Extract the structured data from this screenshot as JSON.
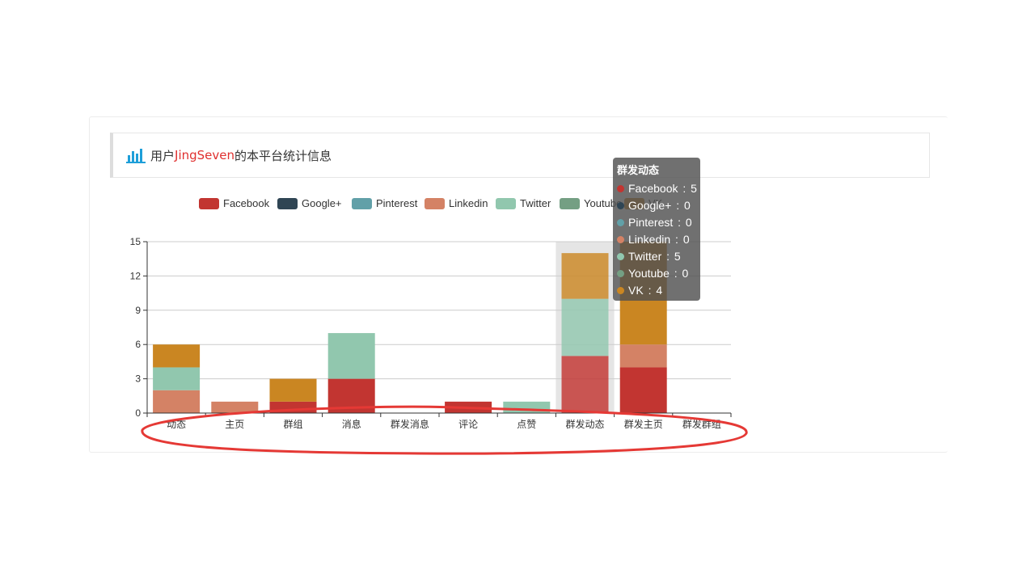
{
  "header": {
    "prefix": "用户",
    "username": "JingSeven",
    "suffix": "的本平台统计信息",
    "icon": "bar-chart-icon",
    "icon_color": "#1e9fd9",
    "username_color": "#e0302f"
  },
  "chart_data": {
    "type": "bar",
    "stacked": true,
    "categories": [
      "动态",
      "主页",
      "群组",
      "消息",
      "群发消息",
      "评论",
      "点赞",
      "群发动态",
      "群发主页",
      "群发群组"
    ],
    "series": [
      {
        "name": "Facebook",
        "color": "#c23531",
        "values": [
          0,
          0,
          1,
          3,
          0,
          1,
          0,
          5,
          4,
          0
        ]
      },
      {
        "name": "Google+",
        "color": "#2f4554",
        "values": [
          0,
          0,
          0,
          0,
          0,
          0,
          0,
          0,
          0,
          0
        ]
      },
      {
        "name": "Pinterest",
        "color": "#61a0a8",
        "values": [
          0,
          0,
          0,
          0,
          0,
          0,
          0,
          0,
          0,
          0
        ]
      },
      {
        "name": "Linkedin",
        "color": "#d48265",
        "values": [
          2,
          1,
          0,
          0,
          0,
          0,
          0,
          0,
          2,
          0
        ]
      },
      {
        "name": "Twitter",
        "color": "#91c7ae",
        "values": [
          2,
          0,
          0,
          4,
          0,
          0,
          1,
          5,
          0,
          0
        ]
      },
      {
        "name": "Youtube",
        "color": "#749f83",
        "values": [
          0,
          0,
          0,
          0,
          0,
          0,
          0,
          0,
          0,
          0
        ]
      },
      {
        "name": "VK",
        "color": "#ca8622",
        "values": [
          2,
          0,
          2,
          0,
          0,
          0,
          0,
          4,
          9,
          0
        ]
      }
    ],
    "y_ticks": [
      "0",
      "3",
      "6",
      "9",
      "12",
      "15"
    ],
    "ylim": [
      0,
      15
    ],
    "grid": true,
    "legend_position": "top",
    "highlighted_category": "群发动态"
  },
  "tooltip": {
    "title": "群发动态",
    "rows": [
      {
        "name": "Facebook",
        "value": "5",
        "color": "#c23531"
      },
      {
        "name": "Google+",
        "value": "0",
        "color": "#2f4554"
      },
      {
        "name": "Pinterest",
        "value": "0",
        "color": "#61a0a8"
      },
      {
        "name": "Linkedin",
        "value": "0",
        "color": "#d48265"
      },
      {
        "name": "Twitter",
        "value": "5",
        "color": "#91c7ae"
      },
      {
        "name": "Youtube",
        "value": "0",
        "color": "#749f83"
      },
      {
        "name": "VK",
        "value": "4",
        "color": "#ca8622"
      }
    ]
  },
  "annotation": {
    "shape": "ellipse",
    "color": "#e53935",
    "target": "x-axis labels"
  }
}
